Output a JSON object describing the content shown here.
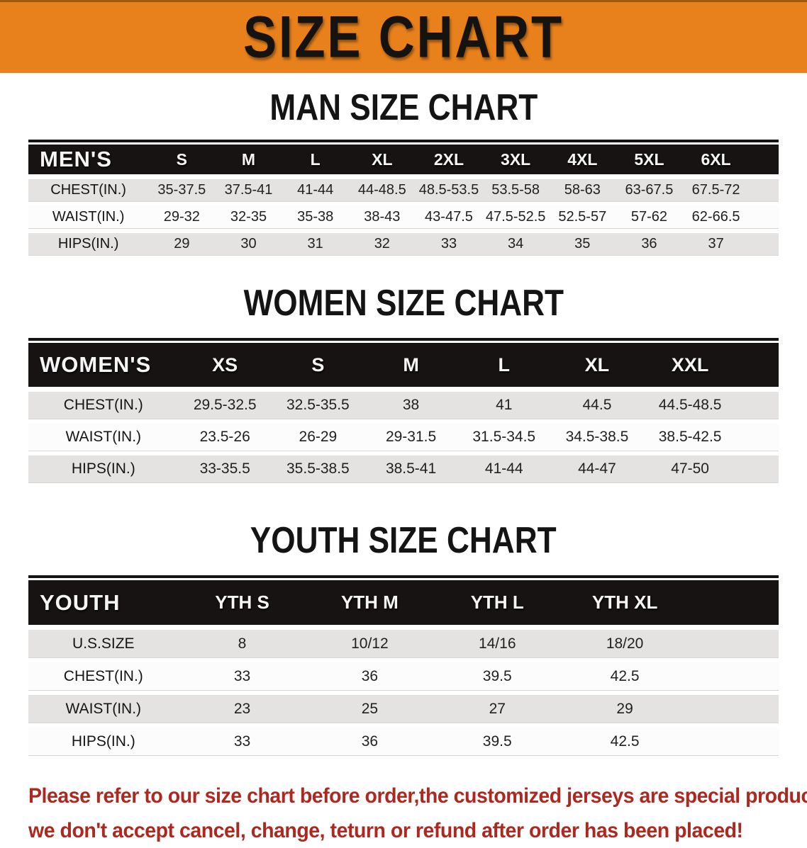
{
  "banner": {
    "title": "SIZE CHART",
    "background_color": "#e8811b",
    "text_color": "#151310"
  },
  "sections": [
    {
      "title": "MAN SIZE CHART",
      "table": {
        "header_label": "MEN'S",
        "sizes": [
          "S",
          "M",
          "L",
          "XL",
          "2XL",
          "3XL",
          "4XL",
          "5XL",
          "6XL"
        ],
        "rows": [
          {
            "label": "CHEST(IN.)",
            "values": [
              "35-37.5",
              "37.5-41",
              "41-44",
              "44-48.5",
              "48.5-53.5",
              "53.5-58",
              "58-63",
              "63-67.5",
              "67.5-72"
            ]
          },
          {
            "label": "WAIST(IN.)",
            "values": [
              "29-32",
              "32-35",
              "35-38",
              "38-43",
              "43-47.5",
              "47.5-52.5",
              "52.5-57",
              "57-62",
              "62-66.5"
            ]
          },
          {
            "label": "HIPS(IN.)",
            "values": [
              "29",
              "30",
              "31",
              "32",
              "33",
              "34",
              "35",
              "36",
              "37"
            ]
          }
        ]
      }
    },
    {
      "title": "WOMEN SIZE CHART",
      "table": {
        "header_label": "WOMEN'S",
        "sizes": [
          "XS",
          "S",
          "M",
          "L",
          "XL",
          "XXL"
        ],
        "rows": [
          {
            "label": "CHEST(IN.)",
            "values": [
              "29.5-32.5",
              "32.5-35.5",
              "38",
              "41",
              "44.5",
              "44.5-48.5"
            ]
          },
          {
            "label": "WAIST(IN.)",
            "values": [
              "23.5-26",
              "26-29",
              "29-31.5",
              "31.5-34.5",
              "34.5-38.5",
              "38.5-42.5"
            ]
          },
          {
            "label": "HIPS(IN.)",
            "values": [
              "33-35.5",
              "35.5-38.5",
              "38.5-41",
              "41-44",
              "44-47",
              "47-50"
            ]
          }
        ]
      }
    },
    {
      "title": "YOUTH SIZE CHART",
      "table": {
        "header_label": "YOUTH",
        "sizes": [
          "YTH S",
          "YTH M",
          "YTH L",
          "YTH XL"
        ],
        "rows": [
          {
            "label": "U.S.SIZE",
            "values": [
              "8",
              "10/12",
              "14/16",
              "18/20"
            ]
          },
          {
            "label": "CHEST(IN.)",
            "values": [
              "33",
              "36",
              "39.5",
              "42.5"
            ]
          },
          {
            "label": "WAIST(IN.)",
            "values": [
              "23",
              "25",
              "27",
              "29"
            ]
          },
          {
            "label": "HIPS(IN.)",
            "values": [
              "33",
              "36",
              "39.5",
              "42.5"
            ]
          }
        ]
      }
    }
  ],
  "footer": {
    "line1": "Please refer to our size chart before order,the customized jerseys are special products,",
    "line2": "we don't accept cancel, change, teturn or refund after order has been placed!",
    "text_color": "#ad281e"
  },
  "colors": {
    "table_header_bg": "#171312",
    "row_gray": "#e4e3e2",
    "row_white": "#fcfcfc"
  }
}
